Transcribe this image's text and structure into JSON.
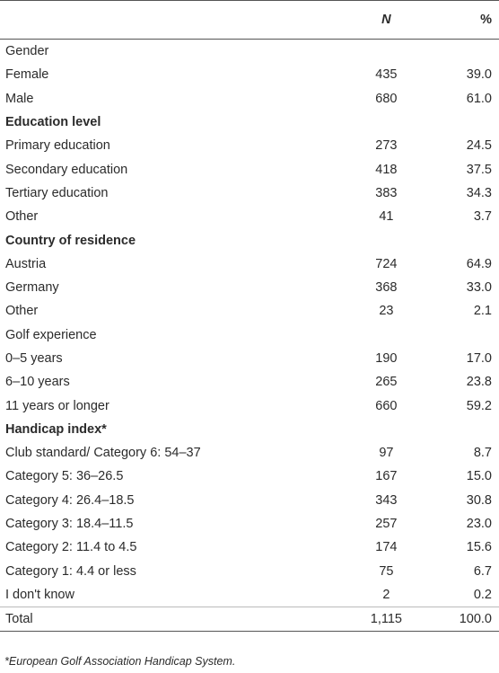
{
  "table": {
    "header": [
      "",
      "N",
      "%"
    ],
    "rows": [
      [
        "Gender"
      ],
      [
        "Female",
        "435",
        "39.0"
      ],
      [
        "Male",
        "680",
        "61.0"
      ],
      [
        "Education level"
      ],
      [
        "Primary education",
        "273",
        "24.5"
      ],
      [
        "Secondary education",
        "418",
        "37.5"
      ],
      [
        "Tertiary education",
        "383",
        "34.3"
      ],
      [
        "Other",
        "41",
        "3.7"
      ],
      [
        "Country of residence"
      ],
      [
        "Austria",
        "724",
        "64.9"
      ],
      [
        "Germany",
        "368",
        "33.0"
      ],
      [
        "Other",
        "23",
        "2.1"
      ],
      [
        "Golf experience"
      ],
      [
        "0–5 years",
        "190",
        "17.0"
      ],
      [
        "6–10 years",
        "265",
        "23.8"
      ],
      [
        "11 years or longer",
        "660",
        "59.2"
      ],
      [
        "Handicap index*"
      ],
      [
        "Club standard/ Category 6: 54–37",
        "97",
        "8.7"
      ],
      [
        "Category 5: 36–26.5",
        "167",
        "15.0"
      ],
      [
        "Category 4: 26.4–18.5",
        "343",
        "30.8"
      ],
      [
        "Category 3: 18.4–11.5",
        "257",
        "23.0"
      ],
      [
        "Category 2: 11.4 to 4.5",
        "174",
        "15.6"
      ],
      [
        "Category 1: 4.4 or less",
        "75",
        "6.7"
      ],
      [
        "I don't know",
        "2",
        "0.2"
      ],
      [
        "Total",
        "1,115",
        "100.0"
      ]
    ]
  },
  "footnote": "*European Golf Association Handicap System."
}
